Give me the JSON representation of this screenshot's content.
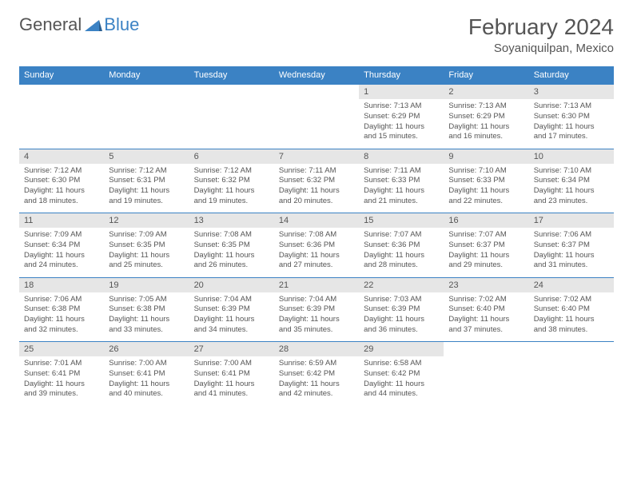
{
  "brand": {
    "part1": "General",
    "part2": "Blue"
  },
  "title": "February 2024",
  "location": "Soyaniquilpan, Mexico",
  "colors": {
    "accent": "#3b82c4",
    "header_bg": "#3b82c4",
    "daynum_bg": "#e6e6e6",
    "text": "#555"
  },
  "day_headers": [
    "Sunday",
    "Monday",
    "Tuesday",
    "Wednesday",
    "Thursday",
    "Friday",
    "Saturday"
  ],
  "weeks": [
    [
      null,
      null,
      null,
      null,
      {
        "n": "1",
        "sr": "Sunrise: 7:13 AM",
        "ss": "Sunset: 6:29 PM",
        "dl": "Daylight: 11 hours and 15 minutes."
      },
      {
        "n": "2",
        "sr": "Sunrise: 7:13 AM",
        "ss": "Sunset: 6:29 PM",
        "dl": "Daylight: 11 hours and 16 minutes."
      },
      {
        "n": "3",
        "sr": "Sunrise: 7:13 AM",
        "ss": "Sunset: 6:30 PM",
        "dl": "Daylight: 11 hours and 17 minutes."
      }
    ],
    [
      {
        "n": "4",
        "sr": "Sunrise: 7:12 AM",
        "ss": "Sunset: 6:30 PM",
        "dl": "Daylight: 11 hours and 18 minutes."
      },
      {
        "n": "5",
        "sr": "Sunrise: 7:12 AM",
        "ss": "Sunset: 6:31 PM",
        "dl": "Daylight: 11 hours and 19 minutes."
      },
      {
        "n": "6",
        "sr": "Sunrise: 7:12 AM",
        "ss": "Sunset: 6:32 PM",
        "dl": "Daylight: 11 hours and 19 minutes."
      },
      {
        "n": "7",
        "sr": "Sunrise: 7:11 AM",
        "ss": "Sunset: 6:32 PM",
        "dl": "Daylight: 11 hours and 20 minutes."
      },
      {
        "n": "8",
        "sr": "Sunrise: 7:11 AM",
        "ss": "Sunset: 6:33 PM",
        "dl": "Daylight: 11 hours and 21 minutes."
      },
      {
        "n": "9",
        "sr": "Sunrise: 7:10 AM",
        "ss": "Sunset: 6:33 PM",
        "dl": "Daylight: 11 hours and 22 minutes."
      },
      {
        "n": "10",
        "sr": "Sunrise: 7:10 AM",
        "ss": "Sunset: 6:34 PM",
        "dl": "Daylight: 11 hours and 23 minutes."
      }
    ],
    [
      {
        "n": "11",
        "sr": "Sunrise: 7:09 AM",
        "ss": "Sunset: 6:34 PM",
        "dl": "Daylight: 11 hours and 24 minutes."
      },
      {
        "n": "12",
        "sr": "Sunrise: 7:09 AM",
        "ss": "Sunset: 6:35 PM",
        "dl": "Daylight: 11 hours and 25 minutes."
      },
      {
        "n": "13",
        "sr": "Sunrise: 7:08 AM",
        "ss": "Sunset: 6:35 PM",
        "dl": "Daylight: 11 hours and 26 minutes."
      },
      {
        "n": "14",
        "sr": "Sunrise: 7:08 AM",
        "ss": "Sunset: 6:36 PM",
        "dl": "Daylight: 11 hours and 27 minutes."
      },
      {
        "n": "15",
        "sr": "Sunrise: 7:07 AM",
        "ss": "Sunset: 6:36 PM",
        "dl": "Daylight: 11 hours and 28 minutes."
      },
      {
        "n": "16",
        "sr": "Sunrise: 7:07 AM",
        "ss": "Sunset: 6:37 PM",
        "dl": "Daylight: 11 hours and 29 minutes."
      },
      {
        "n": "17",
        "sr": "Sunrise: 7:06 AM",
        "ss": "Sunset: 6:37 PM",
        "dl": "Daylight: 11 hours and 31 minutes."
      }
    ],
    [
      {
        "n": "18",
        "sr": "Sunrise: 7:06 AM",
        "ss": "Sunset: 6:38 PM",
        "dl": "Daylight: 11 hours and 32 minutes."
      },
      {
        "n": "19",
        "sr": "Sunrise: 7:05 AM",
        "ss": "Sunset: 6:38 PM",
        "dl": "Daylight: 11 hours and 33 minutes."
      },
      {
        "n": "20",
        "sr": "Sunrise: 7:04 AM",
        "ss": "Sunset: 6:39 PM",
        "dl": "Daylight: 11 hours and 34 minutes."
      },
      {
        "n": "21",
        "sr": "Sunrise: 7:04 AM",
        "ss": "Sunset: 6:39 PM",
        "dl": "Daylight: 11 hours and 35 minutes."
      },
      {
        "n": "22",
        "sr": "Sunrise: 7:03 AM",
        "ss": "Sunset: 6:39 PM",
        "dl": "Daylight: 11 hours and 36 minutes."
      },
      {
        "n": "23",
        "sr": "Sunrise: 7:02 AM",
        "ss": "Sunset: 6:40 PM",
        "dl": "Daylight: 11 hours and 37 minutes."
      },
      {
        "n": "24",
        "sr": "Sunrise: 7:02 AM",
        "ss": "Sunset: 6:40 PM",
        "dl": "Daylight: 11 hours and 38 minutes."
      }
    ],
    [
      {
        "n": "25",
        "sr": "Sunrise: 7:01 AM",
        "ss": "Sunset: 6:41 PM",
        "dl": "Daylight: 11 hours and 39 minutes."
      },
      {
        "n": "26",
        "sr": "Sunrise: 7:00 AM",
        "ss": "Sunset: 6:41 PM",
        "dl": "Daylight: 11 hours and 40 minutes."
      },
      {
        "n": "27",
        "sr": "Sunrise: 7:00 AM",
        "ss": "Sunset: 6:41 PM",
        "dl": "Daylight: 11 hours and 41 minutes."
      },
      {
        "n": "28",
        "sr": "Sunrise: 6:59 AM",
        "ss": "Sunset: 6:42 PM",
        "dl": "Daylight: 11 hours and 42 minutes."
      },
      {
        "n": "29",
        "sr": "Sunrise: 6:58 AM",
        "ss": "Sunset: 6:42 PM",
        "dl": "Daylight: 11 hours and 44 minutes."
      },
      null,
      null
    ]
  ]
}
